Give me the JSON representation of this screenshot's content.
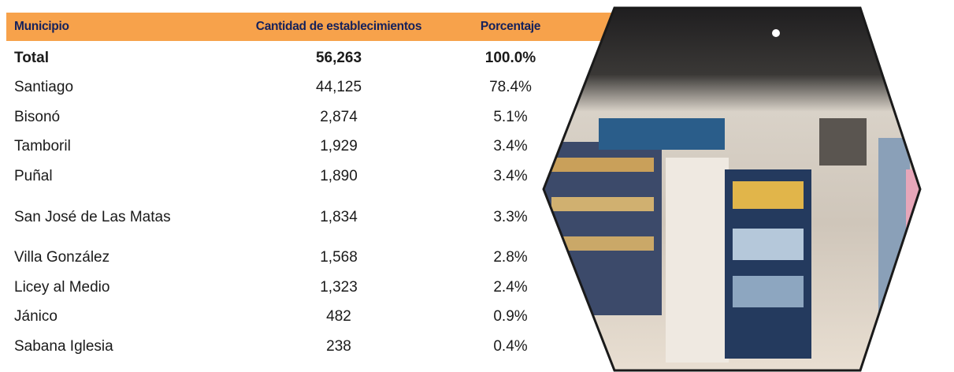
{
  "table": {
    "header": [
      "Municipio",
      "Cantidad de establecimientos",
      "Porcentaje"
    ],
    "rows": [
      [
        "Total",
        "56,263",
        "100.0%"
      ],
      [
        "Santiago",
        "44,125",
        "78.4%"
      ],
      [
        "Bisonó",
        "2,874",
        "5.1%"
      ],
      [
        "Tamboril",
        "1,929",
        "3.4%"
      ],
      [
        "Puñal",
        "1,890",
        "3.4%"
      ],
      [
        "San José de Las Matas",
        "1,834",
        "3.3%"
      ],
      [
        "Villa González",
        "1,568",
        "2.8%"
      ],
      [
        "Licey al Medio",
        "1,323",
        "2.4%"
      ],
      [
        "Jánico",
        "482",
        "0.9%"
      ],
      [
        "Sabana Iglesia",
        "238",
        "0.4%"
      ]
    ]
  }
}
